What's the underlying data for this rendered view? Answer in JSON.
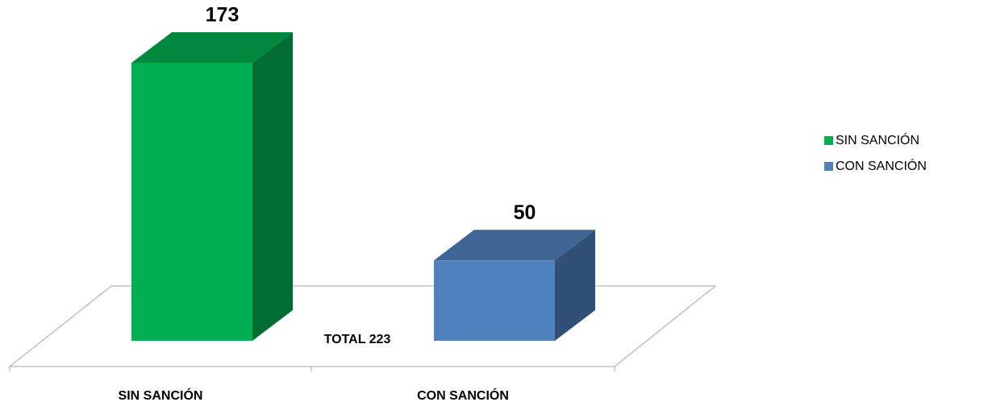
{
  "chart_data": {
    "type": "bar3d",
    "categories": [
      "SIN SANCIÓN",
      "CON SANCIÓN"
    ],
    "values": [
      173,
      50
    ],
    "colors": [
      "#00b050",
      "#4f81bd"
    ],
    "annotation": "TOTAL  223",
    "legend": "right"
  }
}
